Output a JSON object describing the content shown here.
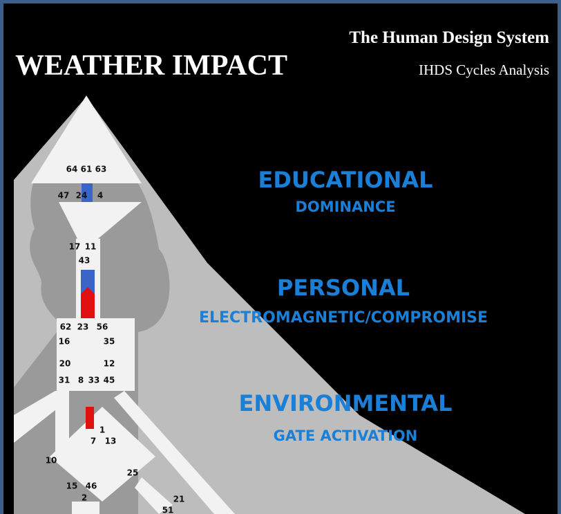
{
  "header": {
    "brand": "The Human Design System",
    "title": "WEATHER IMPACT",
    "subtitle": "IHDS Cycles Analysis"
  },
  "sections": [
    {
      "title": "EDUCATIONAL",
      "subtitle": "DOMINANCE"
    },
    {
      "title": "PERSONAL",
      "subtitle": "ELECTROMAGNETIC/COMPROMISE"
    },
    {
      "title": "ENVIRONMENTAL",
      "subtitle": "GATE ACTIVATION"
    }
  ],
  "gates": [
    64,
    61,
    63,
    47,
    24,
    4,
    17,
    11,
    43,
    62,
    23,
    56,
    16,
    35,
    20,
    12,
    31,
    8,
    33,
    45,
    1,
    7,
    13,
    10,
    25,
    15,
    46,
    2,
    21,
    51
  ]
}
